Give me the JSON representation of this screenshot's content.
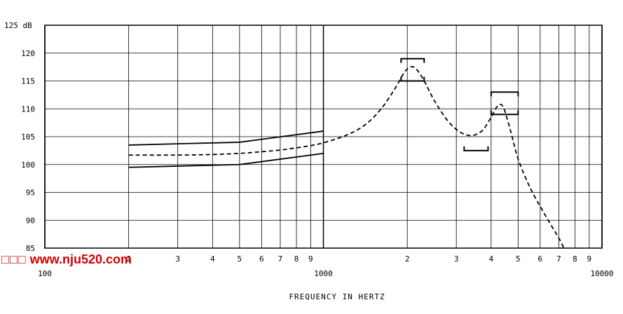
{
  "chart_data": {
    "type": "line",
    "xlabel": "FREQUENCY IN HERTZ",
    "ylabel": "",
    "xscale": "log",
    "xlim": [
      100,
      10000
    ],
    "ylim": [
      85,
      125
    ],
    "x_major_ticks": [
      {
        "value": 100,
        "label": "100"
      },
      {
        "value": 1000,
        "label": "1000"
      },
      {
        "value": 10000,
        "label": "10000"
      }
    ],
    "x_minor_ticks": [
      {
        "value": 200,
        "label": "2"
      },
      {
        "value": 300,
        "label": "3"
      },
      {
        "value": 400,
        "label": "4"
      },
      {
        "value": 500,
        "label": "5"
      },
      {
        "value": 600,
        "label": "6"
      },
      {
        "value": 700,
        "label": "7"
      },
      {
        "value": 800,
        "label": "8"
      },
      {
        "value": 900,
        "label": "9"
      },
      {
        "value": 2000,
        "label": "2"
      },
      {
        "value": 3000,
        "label": "3"
      },
      {
        "value": 4000,
        "label": "4"
      },
      {
        "value": 5000,
        "label": "5"
      },
      {
        "value": 6000,
        "label": "6"
      },
      {
        "value": 7000,
        "label": "7"
      },
      {
        "value": 8000,
        "label": "8"
      },
      {
        "value": 9000,
        "label": "9"
      }
    ],
    "y_ticks": [
      {
        "value": 125,
        "label": "125 dB"
      },
      {
        "value": 120,
        "label": "120"
      },
      {
        "value": 115,
        "label": "115"
      },
      {
        "value": 110,
        "label": "110"
      },
      {
        "value": 105,
        "label": "105"
      },
      {
        "value": 100,
        "label": "100"
      },
      {
        "value": 95,
        "label": "95"
      },
      {
        "value": 90,
        "label": "90"
      },
      {
        "value": 85,
        "label": "85"
      }
    ],
    "grid": true,
    "series": [
      {
        "style": "solid",
        "color": "#000000",
        "points": [
          [
            200,
            103.5
          ],
          [
            500,
            104
          ],
          [
            1000,
            106
          ]
        ]
      },
      {
        "style": "solid",
        "color": "#000000",
        "points": [
          [
            200,
            99.5
          ],
          [
            500,
            100
          ],
          [
            1000,
            102
          ]
        ]
      },
      {
        "style": "dashed",
        "color": "#000000",
        "points": [
          [
            200,
            101.7
          ],
          [
            300,
            101.7
          ],
          [
            400,
            101.8
          ],
          [
            500,
            102
          ],
          [
            600,
            102.3
          ],
          [
            700,
            102.6
          ],
          [
            800,
            103
          ],
          [
            900,
            103.4
          ],
          [
            1000,
            103.9
          ],
          [
            1200,
            105.2
          ],
          [
            1400,
            107
          ],
          [
            1600,
            109.8
          ],
          [
            1800,
            113.5
          ],
          [
            1950,
            116.5
          ],
          [
            2050,
            117.5
          ],
          [
            2150,
            117.2
          ],
          [
            2300,
            115
          ],
          [
            2500,
            111.5
          ],
          [
            2800,
            107.8
          ],
          [
            3100,
            105.8
          ],
          [
            3400,
            105.2
          ],
          [
            3700,
            106
          ],
          [
            3950,
            108
          ],
          [
            4150,
            110
          ],
          [
            4300,
            110.8
          ],
          [
            4450,
            110
          ],
          [
            4700,
            106
          ],
          [
            5000,
            101
          ],
          [
            5500,
            96
          ],
          [
            6000,
            92.5
          ],
          [
            6500,
            89.5
          ],
          [
            7000,
            86.8
          ],
          [
            7300,
            85
          ]
        ]
      }
    ],
    "brackets": [
      {
        "x1": 1900,
        "x2": 2300,
        "y": 119,
        "open": "down"
      },
      {
        "x1": 1900,
        "x2": 2300,
        "y": 115,
        "open": "up"
      },
      {
        "x1": 4000,
        "x2": 5000,
        "y": 113,
        "open": "down"
      },
      {
        "x1": 4000,
        "x2": 5000,
        "y": 109,
        "open": "up"
      },
      {
        "x1": 3200,
        "x2": 3900,
        "y": 102.5,
        "open": "up"
      }
    ]
  },
  "watermark": {
    "boxes": "□□□",
    "text": "www.nju520.com"
  }
}
